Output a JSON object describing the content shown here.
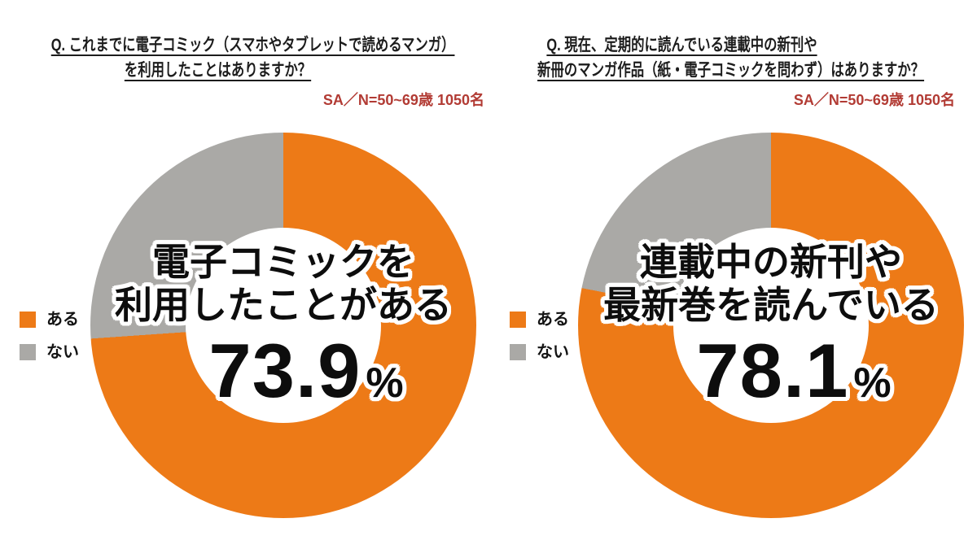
{
  "page": {
    "background": "#ffffff"
  },
  "colors": {
    "yes_orange": "#ED7A17",
    "no_gray": "#AAA9A6",
    "subtitle_red": "#B23B34",
    "title_text": "#1C1C1C",
    "center_text": "#0D0D0D"
  },
  "chart_data": [
    {
      "type": "pie",
      "donut": true,
      "title_lines": [
        "Q. これまでに電子コミック（スマホやタブレットで読めるマンガ）",
        "を利用したことはありますか？"
      ],
      "sample_note": "SA／N=50~69歳 1050名",
      "categories": [
        "ある",
        "ない"
      ],
      "values": [
        73.9,
        26.1
      ],
      "slice_colors": [
        "#ED7A17",
        "#AAA9A6"
      ],
      "start_angle": "12-oclock",
      "direction": "clockwise",
      "legend_position": "middle-left",
      "center_label_lines": [
        "電子コミックを",
        "利用したことがある"
      ],
      "center_value": "73.9",
      "center_unit": "%"
    },
    {
      "type": "pie",
      "donut": true,
      "title_lines": [
        "Q. 現在、定期的に読んでいる連載中の新刊や",
        "新冊のマンガ作品（紙・電子コミックを問わず）はありますか？"
      ],
      "sample_note": "SA／N=50~69歳 1050名",
      "categories": [
        "ある",
        "ない"
      ],
      "values": [
        78.1,
        21.9
      ],
      "slice_colors": [
        "#ED7A17",
        "#AAA9A6"
      ],
      "start_angle": "12-oclock",
      "direction": "clockwise",
      "legend_position": "middle-left",
      "center_label_lines": [
        "連載中の新刊や",
        "最新巻を読んでいる"
      ],
      "center_value": "78.1",
      "center_unit": "%"
    }
  ]
}
